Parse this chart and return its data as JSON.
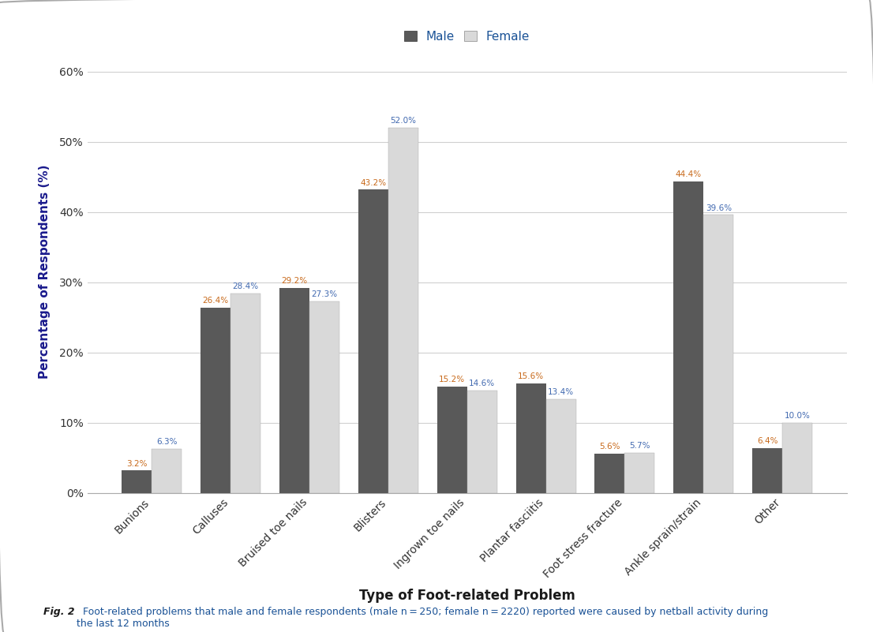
{
  "categories": [
    "Bunions",
    "Calluses",
    "Bruised toe nails",
    "Blisters",
    "Ingrown toe nails",
    "Plantar fasciitis",
    "Foot stress fracture",
    "Ankle sprain/strain",
    "Other"
  ],
  "male_values": [
    3.2,
    26.4,
    29.2,
    43.2,
    15.2,
    15.6,
    5.6,
    44.4,
    6.4
  ],
  "female_values": [
    6.3,
    28.4,
    27.3,
    52.0,
    14.6,
    13.4,
    5.7,
    39.6,
    10.0
  ],
  "male_color": "#595959",
  "female_color": "#d9d9d9",
  "male_label": "Male",
  "female_label": "Female",
  "xlabel": "Type of Foot-related Problem",
  "ylabel": "Percentage of Respondents (%)",
  "yticks": [
    0,
    10,
    20,
    30,
    40,
    50,
    60
  ],
  "ytick_labels": [
    "0%",
    "10%",
    "20%",
    "30%",
    "40%",
    "50%",
    "60%"
  ],
  "ylim": [
    0,
    63
  ],
  "bar_width": 0.38,
  "caption_bold": "Fig. 2",
  "caption_regular": "  Foot-related problems that male and female respondents (male n = 250; female n = 2220) reported were caused by netball activity during\nthe last 12 months",
  "value_label_color_male": "#C8691A",
  "value_label_color_female": "#4169B0",
  "ylabel_color": "#1a1a8c",
  "xlabel_color": "#1a1a1a",
  "background_color": "#ffffff",
  "plot_bg_color": "#ffffff",
  "grid_color": "#d0d0d0",
  "legend_text_color": "#1a5296",
  "tick_label_color": "#333333"
}
